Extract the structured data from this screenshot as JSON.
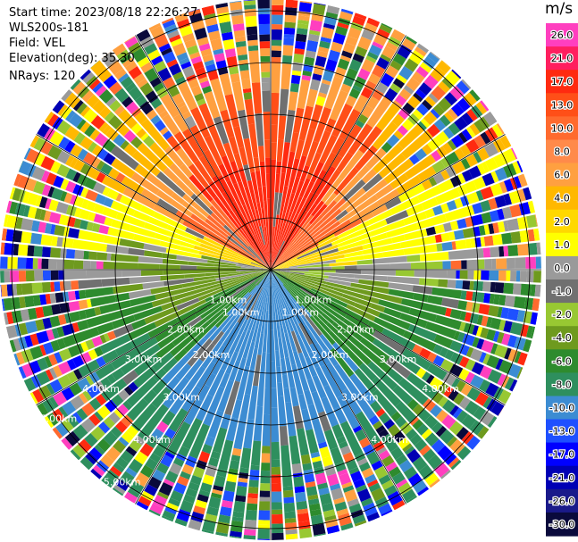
{
  "info": {
    "start_time": "Start time: 2023/08/18 22:26:27",
    "site": "WLS200s-181",
    "field": "Field: VEL",
    "elevation": "Elevation(deg): 35.30",
    "nrays": "NRays: 120"
  },
  "rings": [
    "1.00km",
    "2.00km",
    "3.00km",
    "4.00km",
    "5.00km"
  ],
  "colorbar": {
    "unit": "m/s",
    "ticks": [
      "26.0",
      "21.0",
      "17.0",
      "13.0",
      "10.0",
      "8.0",
      "6.0",
      "4.0",
      "2.0",
      "1.0",
      "0.0",
      "-1.0",
      "-2.0",
      "-4.0",
      "-6.0",
      "-8.0",
      "-10.0",
      "-13.0",
      "-17.0",
      "-21.0",
      "-26.0",
      "-30.0"
    ],
    "colors": [
      "#ff3fbf",
      "#ff1f5f",
      "#ff2a10",
      "#ff4f18",
      "#ff6a2e",
      "#ff8a4a",
      "#ffa040",
      "#ffb800",
      "#ffd800",
      "#ffff00",
      "#9a9a9a",
      "#707070",
      "#98c832",
      "#6e9a1e",
      "#2e8b2e",
      "#2e8f5e",
      "#3c8cd2",
      "#1e50ff",
      "#0000ff",
      "#0000b4",
      "#1a1a8a",
      "#0a0a3c"
    ]
  }
}
